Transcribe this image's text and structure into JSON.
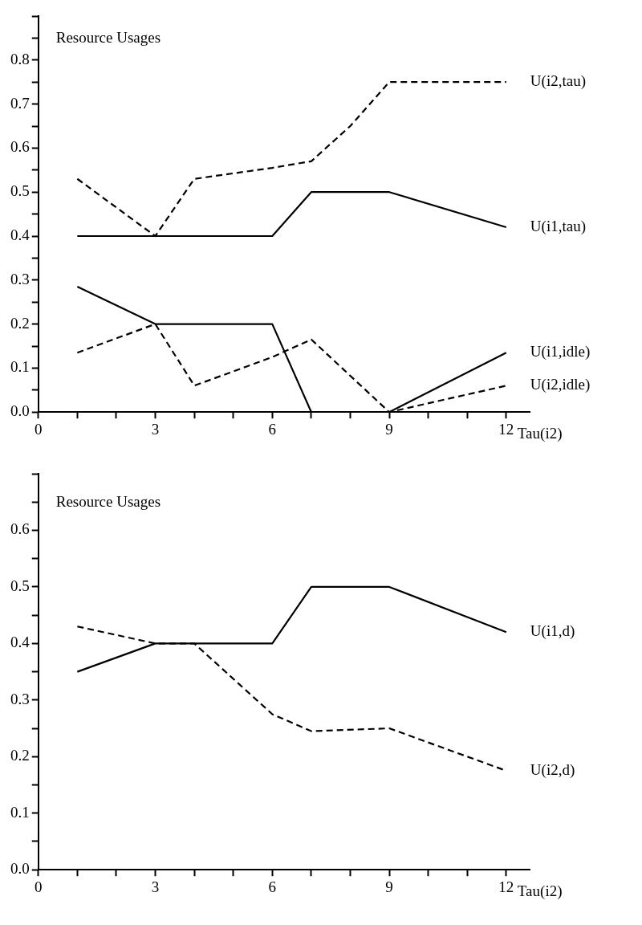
{
  "chart_data": [
    {
      "type": "line",
      "xlabel": "Tau(i2)",
      "ylabel": "Resource Usages",
      "grid": false,
      "legend": false,
      "marker": "none",
      "xlim": [
        0,
        12.6
      ],
      "ylim": [
        0,
        0.9
      ],
      "xticks": [
        0,
        {
          "value": 1,
          "label": null
        },
        {
          "value": 2,
          "label": null
        },
        3,
        {
          "value": 4,
          "label": null
        },
        {
          "value": 5,
          "label": null
        },
        6,
        {
          "value": 7,
          "label": null
        },
        {
          "value": 8,
          "label": null
        },
        9,
        {
          "value": 10,
          "label": null
        },
        {
          "value": 11,
          "label": null
        },
        12
      ],
      "yticks": [
        {
          "value": 0,
          "label": "0.0"
        },
        {
          "value": 0.05,
          "label": null
        },
        0.1,
        {
          "value": 0.15,
          "label": null
        },
        0.2,
        {
          "value": 0.25,
          "label": null
        },
        0.3,
        {
          "value": 0.35,
          "label": null
        },
        0.4,
        {
          "value": 0.45,
          "label": null
        },
        0.5,
        {
          "value": 0.55,
          "label": null
        },
        0.6,
        {
          "value": 0.65,
          "label": null
        },
        0.7,
        {
          "value": 0.75,
          "label": null
        },
        0.8,
        {
          "value": 0.85,
          "label": null
        },
        {
          "value": 0.9,
          "label": null
        }
      ],
      "series": [
        {
          "name": "U(i2,tau)",
          "color": "#000000",
          "line_style": "dashed",
          "x": [
            1,
            3,
            4,
            6,
            7,
            8,
            9,
            12
          ],
          "values": [
            0.53,
            0.4,
            0.53,
            0.555,
            0.57,
            0.65,
            0.75,
            0.75
          ]
        },
        {
          "name": "U(i1,tau)",
          "color": "#000000",
          "line_style": "solid",
          "x": [
            1,
            3,
            6,
            7,
            9,
            12
          ],
          "values": [
            0.4,
            0.4,
            0.4,
            0.5,
            0.5,
            0.42
          ]
        },
        {
          "name": "U(i1,idle)",
          "color": "#000000",
          "line_style": "solid",
          "x": [
            1,
            3,
            6,
            7,
            9,
            12
          ],
          "values": [
            0.285,
            0.2,
            0.2,
            0,
            0,
            0.135
          ]
        },
        {
          "name": "U(i2,idle)",
          "color": "#000000",
          "line_style": "dashed",
          "x": [
            1,
            3,
            4,
            6,
            7,
            9,
            12
          ],
          "values": [
            0.135,
            0.2,
            0.06,
            0.125,
            0.165,
            0,
            0.06
          ]
        }
      ]
    },
    {
      "type": "line",
      "xlabel": "Tau(i2)",
      "ylabel": "Resource Usages",
      "grid": false,
      "legend": false,
      "marker": "none",
      "xlim": [
        0,
        12.6
      ],
      "ylim": [
        0,
        0.7
      ],
      "xticks": [
        0,
        {
          "value": 1,
          "label": null
        },
        {
          "value": 2,
          "label": null
        },
        3,
        {
          "value": 4,
          "label": null
        },
        {
          "value": 5,
          "label": null
        },
        6,
        {
          "value": 7,
          "label": null
        },
        {
          "value": 8,
          "label": null
        },
        9,
        {
          "value": 10,
          "label": null
        },
        {
          "value": 11,
          "label": null
        },
        12
      ],
      "yticks": [
        {
          "value": 0,
          "label": "0.0"
        },
        {
          "value": 0.05,
          "label": null
        },
        0.1,
        {
          "value": 0.15,
          "label": null
        },
        0.2,
        {
          "value": 0.25,
          "label": null
        },
        0.3,
        {
          "value": 0.35,
          "label": null
        },
        0.4,
        {
          "value": 0.45,
          "label": null
        },
        0.5,
        {
          "value": 0.55,
          "label": null
        },
        0.6,
        {
          "value": 0.65,
          "label": null
        },
        {
          "value": 0.7,
          "label": null
        }
      ],
      "series": [
        {
          "name": "U(i1,d)",
          "color": "#000000",
          "line_style": "solid",
          "x": [
            1,
            3,
            6,
            7,
            9,
            12
          ],
          "values": [
            0.35,
            0.4,
            0.4,
            0.5,
            0.5,
            0.42
          ]
        },
        {
          "name": "U(i2,d)",
          "color": "#000000",
          "line_style": "dashed",
          "x": [
            1,
            3,
            4,
            6,
            7,
            9,
            12
          ],
          "values": [
            0.43,
            0.4,
            0.4,
            0.275,
            0.245,
            0.25,
            0.175
          ]
        }
      ]
    }
  ]
}
